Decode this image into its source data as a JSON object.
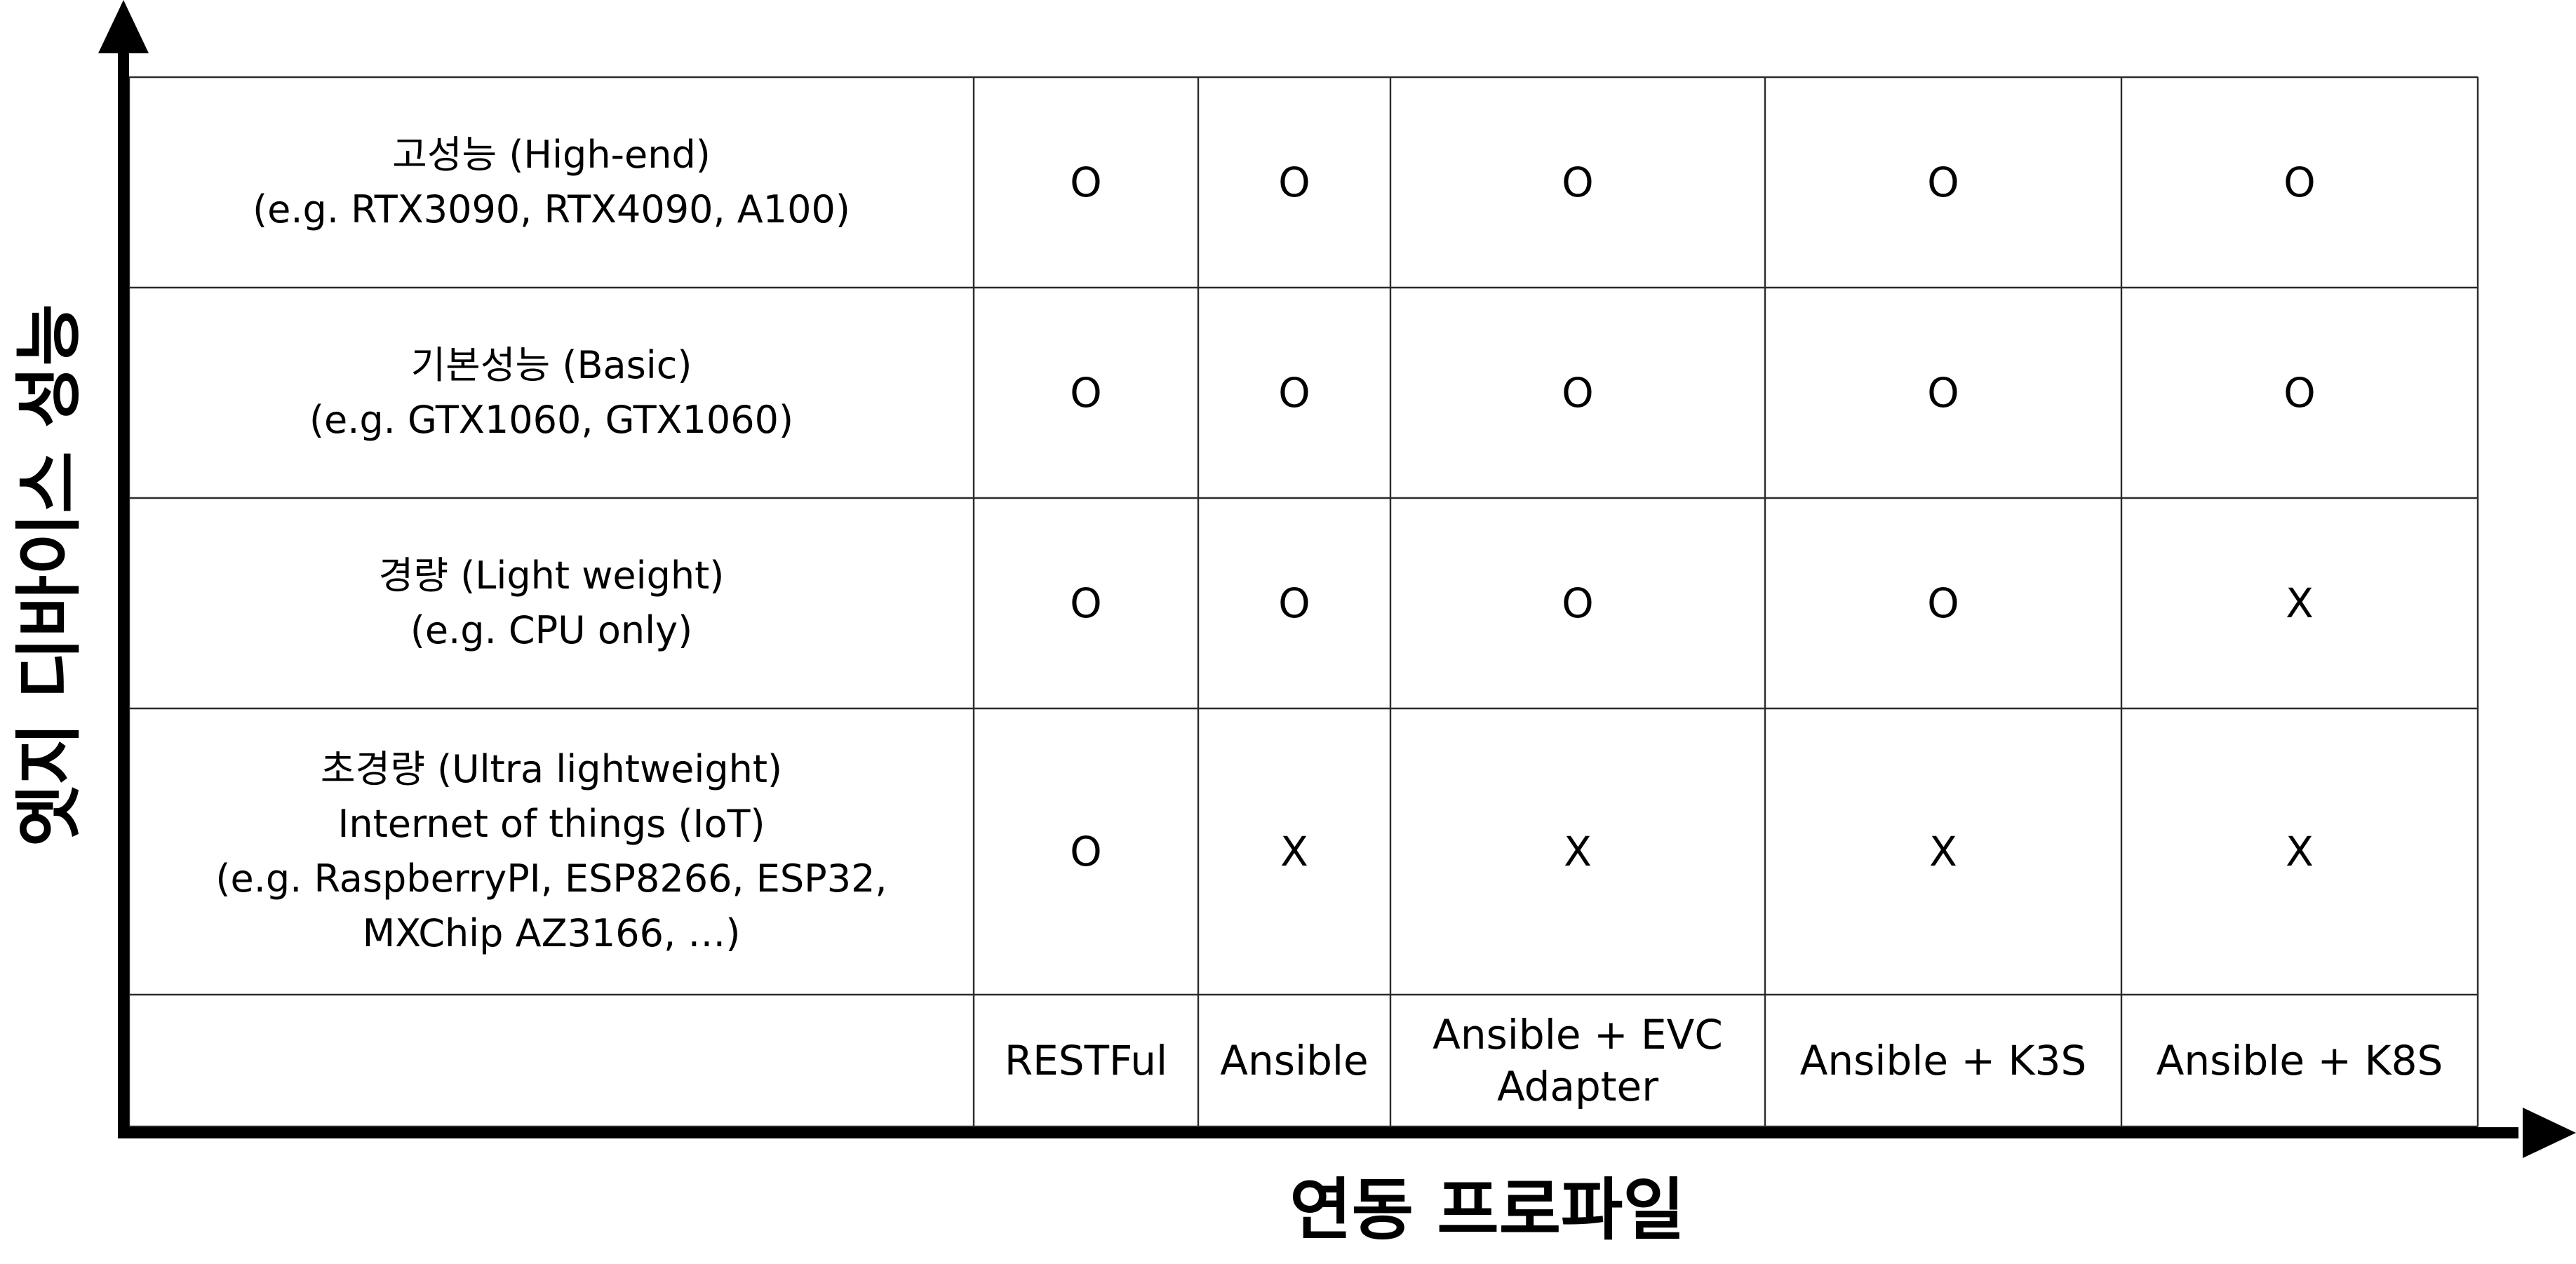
{
  "axes": {
    "y_title": "엣지 디바이스 성능",
    "x_title": "연동 프로파일"
  },
  "table": {
    "columns": [
      [
        "RESTFul"
      ],
      [
        "Ansible"
      ],
      [
        "Ansible + EVC",
        "Adapter"
      ],
      [
        "Ansible + K3S"
      ],
      [
        "Ansible + K8S"
      ]
    ],
    "rows": [
      {
        "label": [
          "고성능 (High-end)",
          "(e.g. RTX3090, RTX4090, A100)"
        ],
        "marks": [
          "O",
          "O",
          "O",
          "O",
          "O"
        ]
      },
      {
        "label": [
          "기본성능 (Basic)",
          "(e.g. GTX1060, GTX1060)"
        ],
        "marks": [
          "O",
          "O",
          "O",
          "O",
          "O"
        ]
      },
      {
        "label": [
          "경량 (Light weight)",
          "(e.g. CPU only)"
        ],
        "marks": [
          "O",
          "O",
          "O",
          "O",
          "X"
        ]
      },
      {
        "label": [
          "초경량 (Ultra lightweight)",
          "Internet of things (IoT)",
          "(e.g. RaspberryPI, ESP8266, ESP32,",
          "MXChip AZ3166, …)"
        ],
        "marks": [
          "O",
          "X",
          "X",
          "X",
          "X"
        ]
      }
    ]
  }
}
